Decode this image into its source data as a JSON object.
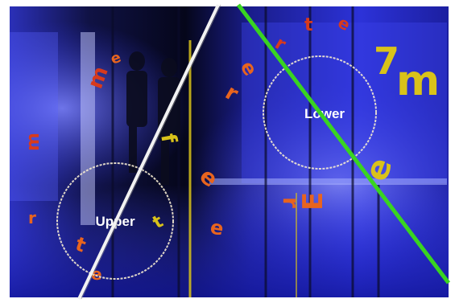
{
  "scene": {
    "description_free": true,
    "labels": {
      "upper": "Upper",
      "lower": "Lower"
    },
    "colors": {
      "backdrop_dark": "#05061a",
      "backdrop_blue": "#2a2fd6",
      "backdrop_light": "#8f93ff",
      "letter_orange": "#e8641e",
      "letter_yellow": "#d9c21a",
      "letter_red": "#d83a1c",
      "green_line": "#39d421",
      "white_line": "#f2f2f2",
      "circle": "#f4ead0"
    }
  }
}
